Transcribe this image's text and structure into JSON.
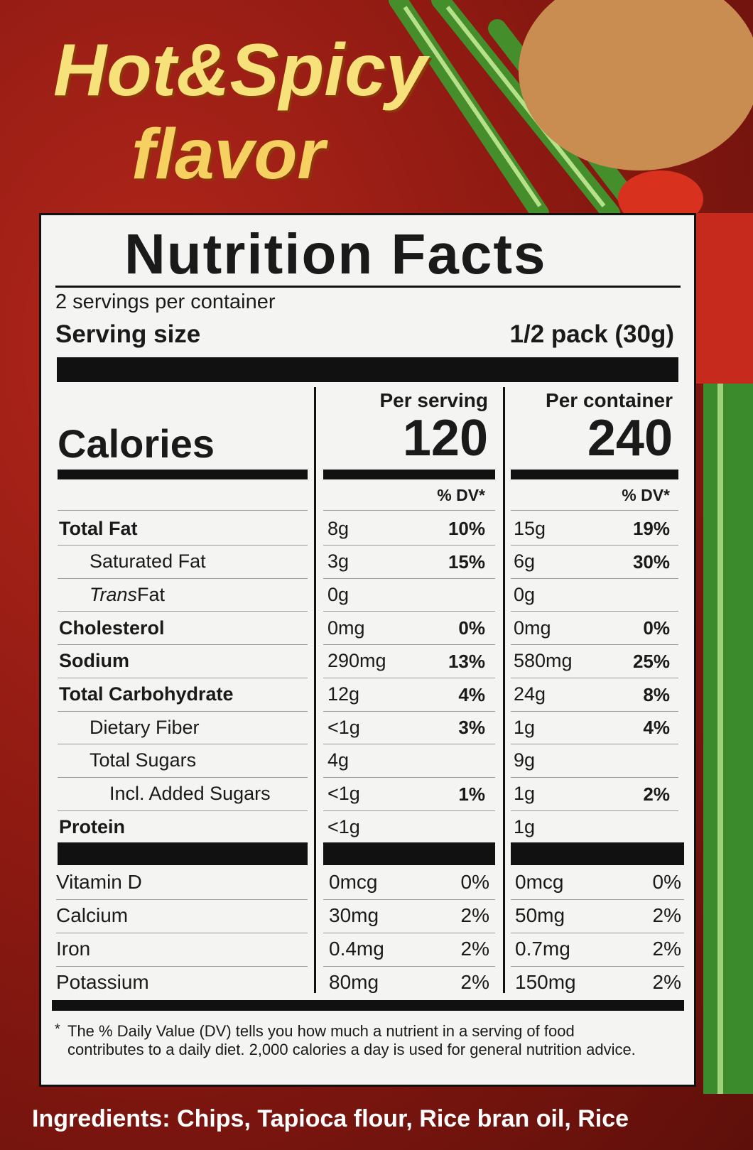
{
  "package_art": {
    "line1": "Hot&Spicy",
    "line2": "flavor"
  },
  "label": {
    "title": "Nutrition Facts",
    "servings": "2 servings per container",
    "serving_size_label": "Serving size",
    "serving_size": "1/2 pack (30g)",
    "calories_label": "Calories",
    "columns": [
      {
        "heading": "Per serving",
        "calories": "120",
        "dv_heading": "% DV*"
      },
      {
        "heading": "Per container",
        "calories": "240",
        "dv_heading": "% DV*"
      }
    ],
    "nutrients": [
      {
        "name": "Total Fat",
        "bold": true,
        "indent": 0,
        "per_serving": {
          "amount": "8g",
          "dv": "10%"
        },
        "per_container": {
          "amount": "15g",
          "dv": "19%"
        }
      },
      {
        "name": "Saturated Fat",
        "bold": false,
        "indent": 1,
        "per_serving": {
          "amount": "3g",
          "dv": "15%"
        },
        "per_container": {
          "amount": "6g",
          "dv": "30%"
        }
      },
      {
        "name_italic": "Trans",
        "name": " Fat",
        "bold": false,
        "indent": 1,
        "per_serving": {
          "amount": "0g"
        },
        "per_container": {
          "amount": "0g"
        }
      },
      {
        "name": "Cholesterol",
        "bold": true,
        "indent": 0,
        "per_serving": {
          "amount": "0mg",
          "dv": "0%"
        },
        "per_container": {
          "amount": "0mg",
          "dv": "0%"
        }
      },
      {
        "name": "Sodium",
        "bold": true,
        "indent": 0,
        "per_serving": {
          "amount": "290mg",
          "dv": "13%"
        },
        "per_container": {
          "amount": "580mg",
          "dv": "25%"
        }
      },
      {
        "name": "Total Carbohydrate",
        "bold": true,
        "indent": 0,
        "per_serving": {
          "amount": "12g",
          "dv": "4%"
        },
        "per_container": {
          "amount": "24g",
          "dv": "8%"
        }
      },
      {
        "name": "Dietary Fiber",
        "bold": false,
        "indent": 1,
        "per_serving": {
          "amount": "<1g",
          "dv": "3%"
        },
        "per_container": {
          "amount": "1g",
          "dv": "4%"
        }
      },
      {
        "name": "Total Sugars",
        "bold": false,
        "indent": 1,
        "per_serving": {
          "amount": "4g"
        },
        "per_container": {
          "amount": "9g"
        }
      },
      {
        "name": "Incl. Added Sugars",
        "bold": false,
        "indent": 2,
        "per_serving": {
          "amount": "<1g",
          "dv": "1%"
        },
        "per_container": {
          "amount": "1g",
          "dv": "2%"
        }
      },
      {
        "name": "Protein",
        "bold": true,
        "indent": 0,
        "per_serving": {
          "amount": "<1g"
        },
        "per_container": {
          "amount": "1g"
        }
      }
    ],
    "vitamins": [
      {
        "name": "Vitamin D",
        "per_serving": {
          "amount": "0mcg",
          "dv": "0%"
        },
        "per_container": {
          "amount": "0mcg",
          "dv": "0%"
        }
      },
      {
        "name": "Calcium",
        "per_serving": {
          "amount": "30mg",
          "dv": "2%"
        },
        "per_container": {
          "amount": "50mg",
          "dv": "2%"
        }
      },
      {
        "name": "Iron",
        "per_serving": {
          "amount": "0.4mg",
          "dv": "2%"
        },
        "per_container": {
          "amount": "0.7mg",
          "dv": "2%"
        }
      },
      {
        "name": "Potassium",
        "per_serving": {
          "amount": "80mg",
          "dv": "2%"
        },
        "per_container": {
          "amount": "150mg",
          "dv": "2%"
        }
      }
    ],
    "footnote_mark": "*",
    "footnote": "The % Daily Value (DV) tells you how much a nutrient in a serving of food contributes to a daily diet. 2,000 calories a day is used for general nutrition advice."
  },
  "ingredients": "Ingredients: Chips, Tapioca flour, Rice bran oil, Rice"
}
